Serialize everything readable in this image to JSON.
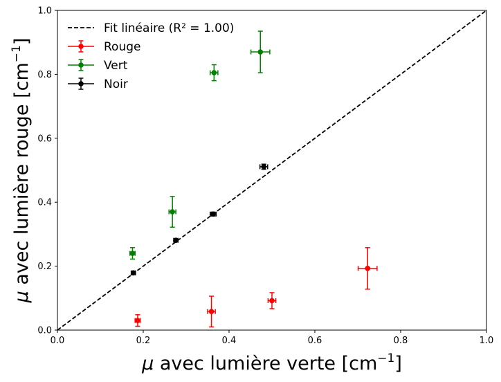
{
  "chart_data": {
    "type": "scatter",
    "xlabel": {
      "mu": "μ",
      "text": " avec lumière verte [cm",
      "sup": "−1",
      "close": "]"
    },
    "ylabel": {
      "mu": "μ",
      "text": " avec lumière rouge [cm",
      "sup": "−1",
      "close": "]"
    },
    "xlim": [
      0,
      1
    ],
    "ylim": [
      0,
      1
    ],
    "xticks": [
      0.0,
      0.2,
      0.4,
      0.6,
      0.8,
      1.0
    ],
    "yticks": [
      0.0,
      0.2,
      0.4,
      0.6,
      0.8,
      1.0
    ],
    "xtick_labels": [
      "0.0",
      "0.2",
      "0.4",
      "0.6",
      "0.8",
      "1.0"
    ],
    "ytick_labels": [
      "0.0",
      "0.2",
      "0.4",
      "0.6",
      "0.8",
      "1.0"
    ],
    "grid": false,
    "legend_position": "top-left",
    "fit": {
      "name": "Fit linéaire (R² = 1.00)",
      "color": "#000000",
      "style": "dashed",
      "x": [
        0,
        1
      ],
      "y": [
        0,
        1
      ]
    },
    "series": [
      {
        "name": "Rouge",
        "color": "#ff0000",
        "points": [
          {
            "x": 0.187,
            "y": 0.03,
            "xerr": 0.006,
            "yerr": 0.018
          },
          {
            "x": 0.359,
            "y": 0.058,
            "xerr": 0.009,
            "yerr": 0.048
          },
          {
            "x": 0.5,
            "y": 0.092,
            "xerr": 0.009,
            "yerr": 0.025
          },
          {
            "x": 0.723,
            "y": 0.193,
            "xerr": 0.022,
            "yerr": 0.065
          }
        ]
      },
      {
        "name": "Vert",
        "color": "#008000",
        "points": [
          {
            "x": 0.175,
            "y": 0.24,
            "xerr": 0.006,
            "yerr": 0.018
          },
          {
            "x": 0.268,
            "y": 0.37,
            "xerr": 0.008,
            "yerr": 0.048
          },
          {
            "x": 0.365,
            "y": 0.805,
            "xerr": 0.009,
            "yerr": 0.025
          },
          {
            "x": 0.473,
            "y": 0.87,
            "xerr": 0.022,
            "yerr": 0.065
          }
        ]
      },
      {
        "name": "Noir",
        "color": "#000000",
        "points": [
          {
            "x": 0.177,
            "y": 0.179,
            "xerr": 0.005,
            "yerr": 0.005
          },
          {
            "x": 0.276,
            "y": 0.281,
            "xerr": 0.005,
            "yerr": 0.005
          },
          {
            "x": 0.363,
            "y": 0.363,
            "xerr": 0.007,
            "yerr": 0.006
          },
          {
            "x": 0.481,
            "y": 0.511,
            "xerr": 0.009,
            "yerr": 0.008
          }
        ]
      }
    ]
  }
}
